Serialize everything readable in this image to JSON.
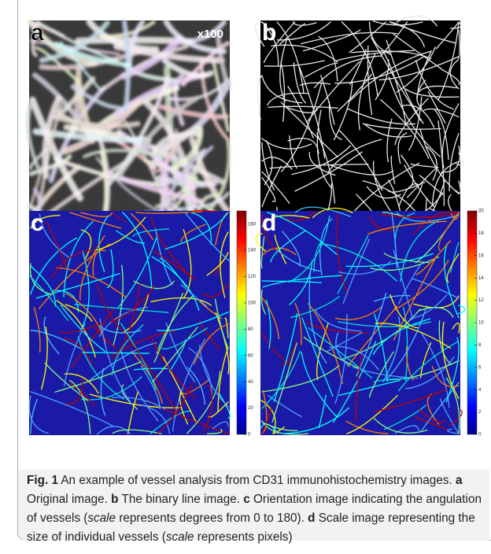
{
  "panels": [
    {
      "label": "a",
      "annotation": "x100"
    },
    {
      "label": "b"
    },
    {
      "label": "c",
      "colorbar": {
        "lim": [
          0,
          170
        ],
        "ticks": [
          0,
          20,
          40,
          60,
          80,
          100,
          120,
          140,
          160
        ]
      }
    },
    {
      "label": "d",
      "colorbar": {
        "lim": [
          0,
          20
        ],
        "ticks": [
          0,
          2,
          4,
          6,
          8,
          10,
          12,
          14,
          16,
          18,
          20
        ]
      }
    }
  ],
  "caption": {
    "figure_label": "Fig. 1",
    "intro": "An example of vessel analysis from CD31 immunohistochemistry images.",
    "items": [
      {
        "label": "a",
        "before": "Original image."
      },
      {
        "label": "b",
        "before": "The binary line image."
      },
      {
        "label": "c",
        "before": "Orientation image indicating the angulation of vessels (",
        "em": "scale",
        "after": " represents degrees from 0 to 180)."
      },
      {
        "label": "d",
        "before": "Scale image representing the size of individual vessels (",
        "em": "scale",
        "after": " represents pixels)"
      }
    ]
  }
}
